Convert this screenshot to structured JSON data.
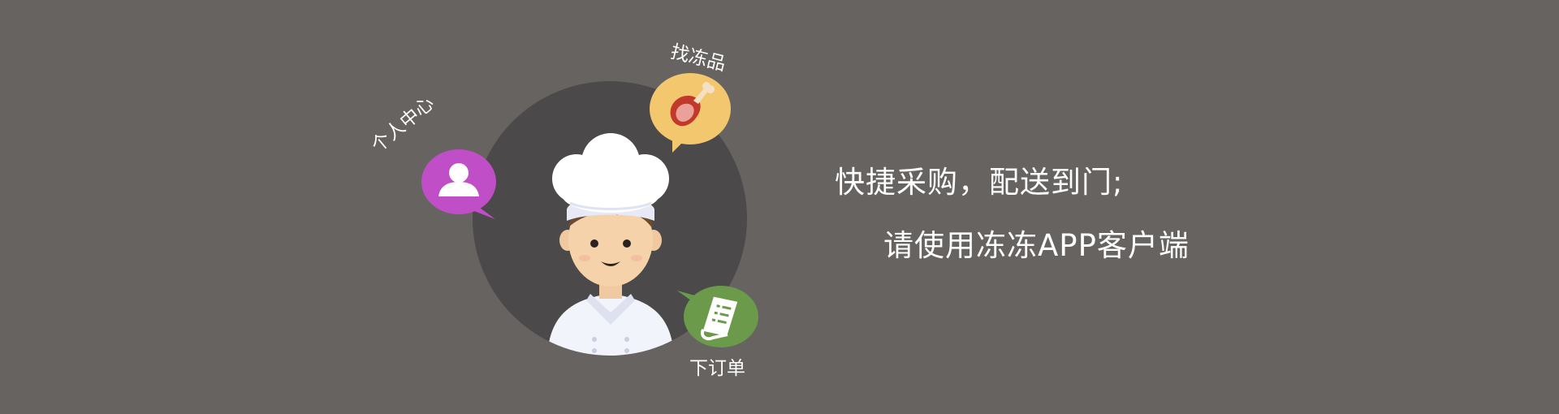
{
  "bubbles": {
    "user_center": {
      "label": "个人中心",
      "color": "#c04ec6",
      "icon": "person-icon"
    },
    "find_frozen": {
      "label": "找冻品",
      "color": "#f3c76e",
      "icon": "meat-icon"
    },
    "place_order": {
      "label": "下订单",
      "color": "#6b9a4a",
      "icon": "order-list-icon"
    }
  },
  "tagline": {
    "line1": "快捷采购，配送到门;",
    "line2": "请使用冻冻APP客户端"
  },
  "colors": {
    "background": "#676361",
    "circle": "#4b4949"
  }
}
